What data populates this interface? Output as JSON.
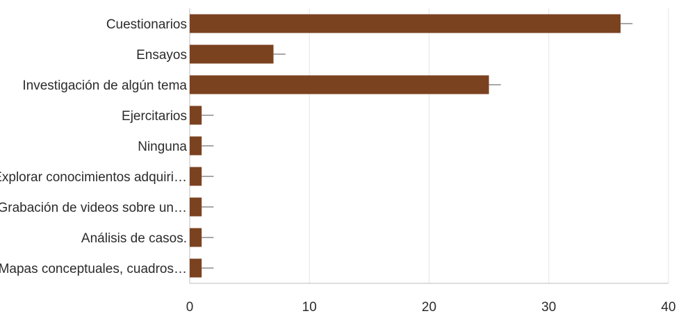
{
  "chart_data": {
    "type": "bar",
    "orientation": "horizontal",
    "title": "",
    "xlabel": "",
    "ylabel": "",
    "categories": [
      "Cuestionarios",
      "Ensayos",
      "Investigación de algún tema",
      "Ejercitarios",
      "Ninguna",
      "Explorar conocimientos adquiri…",
      "Grabación de videos sobre un…",
      "Análisis de casos.",
      "Mapas conceptuales, cuadros…"
    ],
    "values": [
      36,
      7,
      25,
      1,
      1,
      1,
      1,
      1,
      1
    ],
    "error_bar_ends": [
      37,
      8,
      26,
      2,
      2,
      2,
      2,
      2,
      2
    ],
    "xlim": [
      0,
      40
    ],
    "xticks": [
      0,
      10,
      20,
      30,
      40
    ],
    "grid": true,
    "legend": "none",
    "bar_color": "#7b4220"
  }
}
